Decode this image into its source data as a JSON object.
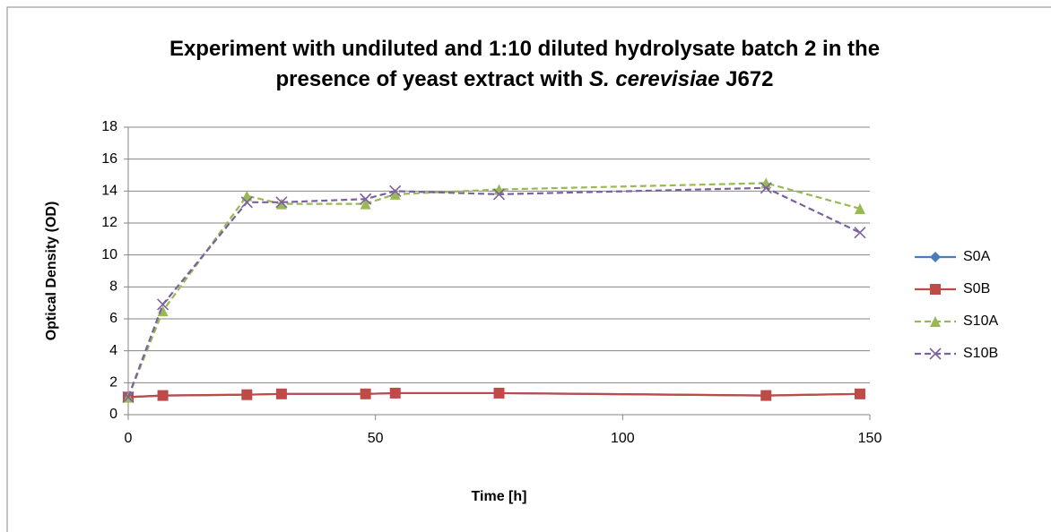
{
  "chart_data": {
    "type": "line",
    "title": [
      [
        {
          "text": "Experiment with undiluted and 1:10 diluted hydrolysate batch 2 in the"
        }
      ],
      [
        {
          "text": "presence of yeast extract with "
        },
        {
          "text": "S. cerevisiae",
          "italic": true
        },
        {
          "text": " J672"
        }
      ]
    ],
    "xlabel": "Time [h]",
    "ylabel": "Optical Density (OD)",
    "x": [
      0,
      7,
      24,
      31,
      48,
      54,
      75,
      129,
      148
    ],
    "series": [
      {
        "name": "S0A",
        "color": "#4a7ebb",
        "marker": "diamond",
        "line_style": "solid",
        "values": [
          1.1,
          1.2,
          1.25,
          1.3,
          1.3,
          1.35,
          1.35,
          1.2,
          1.3
        ]
      },
      {
        "name": "S0B",
        "color": "#be4b48",
        "marker": "square",
        "line_style": "solid",
        "values": [
          1.1,
          1.2,
          1.25,
          1.3,
          1.3,
          1.35,
          1.35,
          1.2,
          1.3
        ]
      },
      {
        "name": "S10A",
        "color": "#98b954",
        "marker": "triangle",
        "line_style": "dashed",
        "values": [
          1.1,
          6.5,
          13.7,
          13.2,
          13.2,
          13.8,
          14.1,
          14.5,
          12.9
        ]
      },
      {
        "name": "S10B",
        "color": "#7d60a0",
        "marker": "x",
        "line_style": "dashed",
        "values": [
          1.1,
          6.9,
          13.3,
          13.3,
          13.5,
          14.0,
          13.8,
          14.2,
          11.4
        ]
      }
    ],
    "xlim": [
      0,
      150
    ],
    "xticks": [
      0,
      50,
      100,
      150
    ],
    "ylim": [
      0,
      18
    ],
    "yticks": [
      0,
      2,
      4,
      6,
      8,
      10,
      12,
      14,
      16,
      18
    ],
    "grid": true,
    "legend": "right"
  }
}
